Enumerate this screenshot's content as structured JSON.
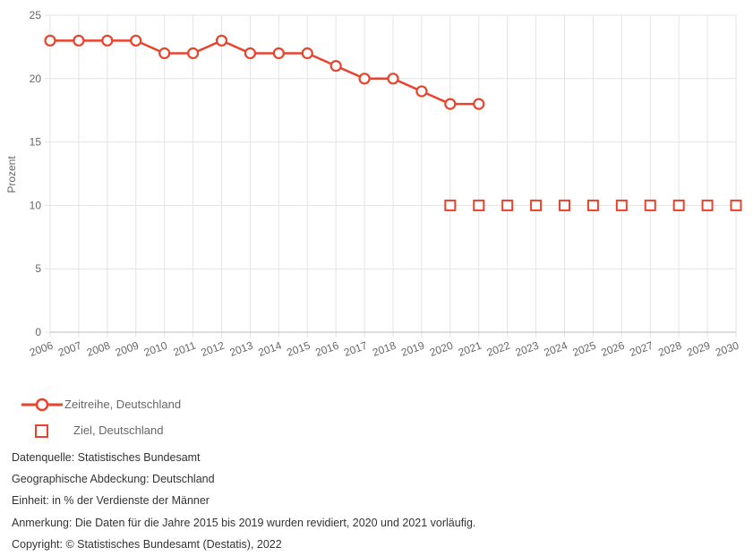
{
  "chart_data": {
    "type": "line",
    "ylabel": "Prozent",
    "ylim": [
      0,
      25
    ],
    "yticks": [
      0,
      5,
      10,
      15,
      20,
      25
    ],
    "categories": [
      "2006",
      "2007",
      "2008",
      "2009",
      "2010",
      "2011",
      "2012",
      "2013",
      "2014",
      "2015",
      "2016",
      "2017",
      "2018",
      "2019",
      "2020",
      "2021",
      "2022",
      "2023",
      "2024",
      "2025",
      "2026",
      "2027",
      "2028",
      "2029",
      "2030"
    ],
    "grid": true,
    "legend_position": "bottom-left",
    "series": [
      {
        "name": "Zeitreihe, Deutschland",
        "style": "line-circle",
        "color": "#e8432d",
        "values": [
          23,
          23,
          23,
          23,
          22,
          22,
          23,
          22,
          22,
          22,
          21,
          20,
          20,
          19,
          18,
          18,
          null,
          null,
          null,
          null,
          null,
          null,
          null,
          null,
          null
        ]
      },
      {
        "name": "Ziel, Deutschland",
        "style": "square-marker",
        "color": "#e8432d",
        "values": [
          null,
          null,
          null,
          null,
          null,
          null,
          null,
          null,
          null,
          null,
          null,
          null,
          null,
          null,
          10,
          10,
          10,
          10,
          10,
          10,
          10,
          10,
          10,
          10,
          10
        ]
      }
    ]
  },
  "notes": [
    "Datenquelle: Statistisches Bundesamt",
    "Geographische Abdeckung: Deutschland",
    "Einheit: in % der Verdienste der Männer",
    "Anmerkung: Die Daten für die Jahre 2015 bis 2019 wurden revidiert, 2020 und 2021 vorläufig.",
    "Copyright: © Statistisches Bundesamt (Destatis), 2022"
  ]
}
